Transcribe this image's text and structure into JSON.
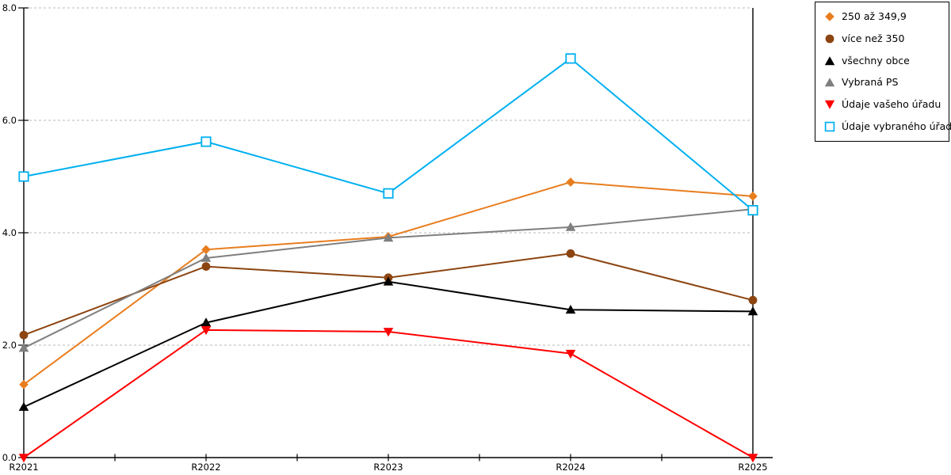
{
  "legend": {
    "items": [
      {
        "label": "250 až 349,9",
        "icon": "diamond-marker-icon",
        "marker": "diamond",
        "color": "#E87D1E"
      },
      {
        "label": "více než 350",
        "icon": "circle-marker-icon",
        "marker": "circle",
        "color": "#8C4411"
      },
      {
        "label": "všechny obce",
        "icon": "triangle-up-marker-icon",
        "marker": "triangle-up",
        "color": "#000000"
      },
      {
        "label": "Vybraná PS",
        "icon": "triangle-up-marker-icon",
        "marker": "triangle-up",
        "color": "#7F7F7F"
      },
      {
        "label": "Údaje vašeho úřadu",
        "icon": "triangle-down-marker-icon",
        "marker": "triangle-down",
        "color": "#FF0000"
      },
      {
        "label": "Údaje vybraného úřadu",
        "icon": "square-open-marker-icon",
        "marker": "square-open",
        "color": "#00B0F0"
      }
    ]
  },
  "chart_data": {
    "type": "line",
    "title": "",
    "xlabel": "",
    "ylabel": "",
    "categories": [
      "R2021",
      "R2022",
      "R2023",
      "R2024",
      "R2025"
    ],
    "series": [
      {
        "name": "250 až 349,9",
        "marker": "diamond",
        "color": "#E87D1E",
        "values": [
          1.3,
          3.7,
          3.93,
          4.9,
          4.65
        ]
      },
      {
        "name": "více než 350",
        "marker": "circle",
        "color": "#8C4411",
        "values": [
          2.18,
          3.4,
          3.2,
          3.63,
          2.8
        ]
      },
      {
        "name": "všechny obce",
        "marker": "triangle-up",
        "color": "#000000",
        "values": [
          0.9,
          2.4,
          3.13,
          2.63,
          2.6
        ]
      },
      {
        "name": "Vybraná PS",
        "marker": "triangle-up",
        "color": "#7F7F7F",
        "values": [
          1.95,
          3.55,
          3.91,
          4.1,
          4.42
        ]
      },
      {
        "name": "Údaje vašeho úřadu",
        "marker": "triangle-down",
        "color": "#FF0000",
        "values": [
          0.0,
          2.27,
          2.24,
          1.85,
          0.0
        ]
      },
      {
        "name": "Údaje vybraného úřadu",
        "marker": "square-open",
        "color": "#00B0F0",
        "values": [
          5.0,
          5.62,
          4.7,
          7.1,
          4.4
        ]
      }
    ],
    "ylim": [
      0,
      8
    ],
    "ytick_step": 2,
    "ytick_labels": [
      "0.0",
      "2.0",
      "4.0",
      "6.0",
      "8.0"
    ],
    "grid": "horizontal-dashed",
    "legend_position": "outside-top-right"
  },
  "colors": {
    "background": "#FFFFFF",
    "axis": "#000000",
    "gridline": "#C8C8C8",
    "text": "#000000"
  }
}
